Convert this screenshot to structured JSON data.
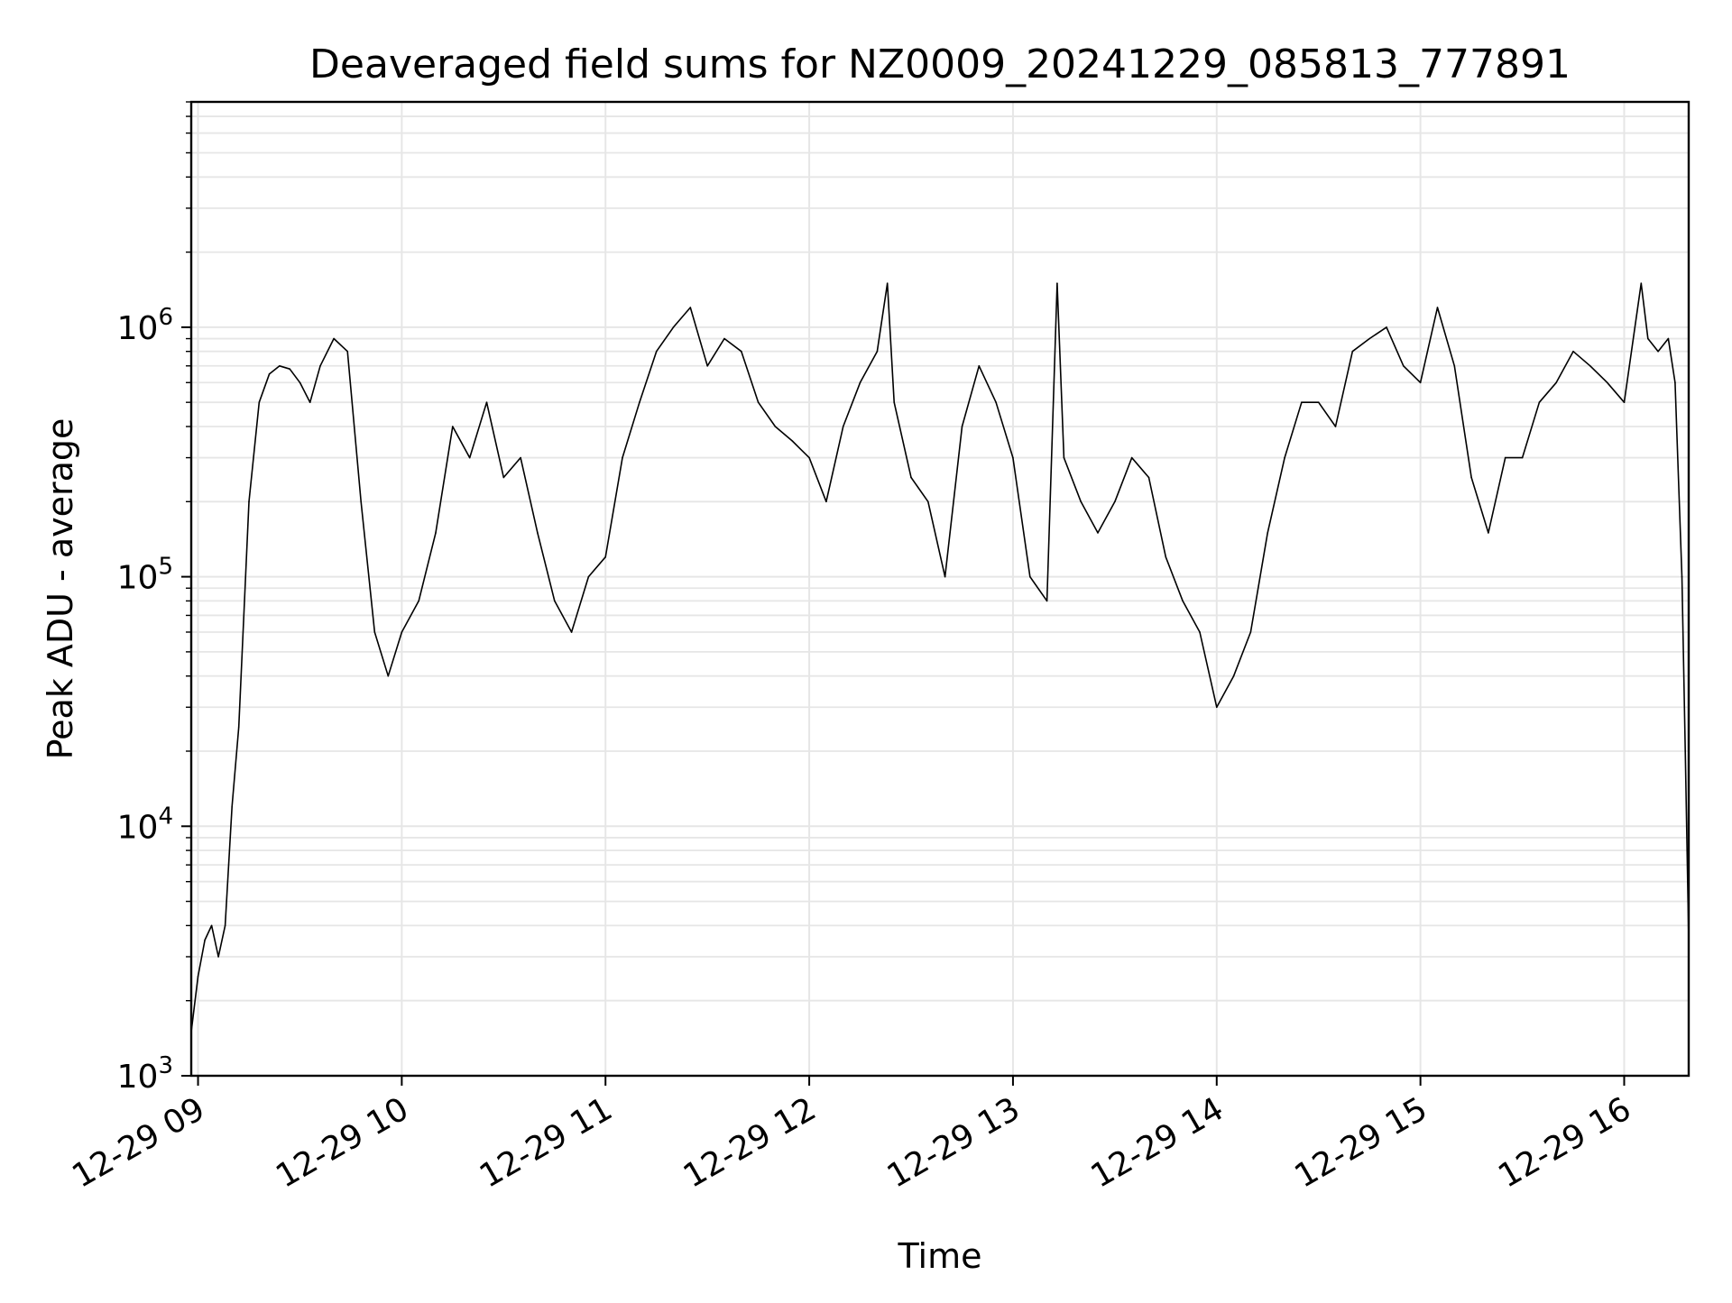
{
  "chart_data": {
    "type": "line",
    "title": "Deaveraged field sums for NZ0009_20241229_085813_777891",
    "xlabel": "Time",
    "ylabel": "Peak ADU - average",
    "yscale": "log",
    "ylim": [
      1000,
      8000000
    ],
    "xlim": [
      "2024-12-29 08:58",
      "2024-12-29 16:19"
    ],
    "x_ticks": [
      "12-29 09",
      "12-29 10",
      "12-29 11",
      "12-29 12",
      "12-29 13",
      "12-29 14",
      "12-29 15",
      "12-29 16"
    ],
    "y_ticks": [
      {
        "base": "10",
        "exp": "3",
        "value": 1000
      },
      {
        "base": "10",
        "exp": "4",
        "value": 10000
      },
      {
        "base": "10",
        "exp": "5",
        "value": 100000
      },
      {
        "base": "10",
        "exp": "6",
        "value": 1000000
      }
    ],
    "grid": true,
    "line_color": "#000000",
    "series": [
      {
        "x": [
          "08:58",
          "09:00",
          "09:02",
          "09:04",
          "09:06",
          "09:08",
          "09:10",
          "09:12",
          "09:15",
          "09:18",
          "09:21",
          "09:24",
          "09:27",
          "09:30",
          "09:33",
          "09:36",
          "09:40",
          "09:44",
          "09:48",
          "09:52",
          "09:56",
          "10:00",
          "10:05",
          "10:10",
          "10:15",
          "10:20",
          "10:25",
          "10:30",
          "10:35",
          "10:40",
          "10:45",
          "10:50",
          "10:55",
          "11:00",
          "11:05",
          "11:10",
          "11:15",
          "11:20",
          "11:25",
          "11:30",
          "11:35",
          "11:40",
          "11:45",
          "11:50",
          "11:55",
          "12:00",
          "12:05",
          "12:10",
          "12:15",
          "12:20",
          "12:23",
          "12:25",
          "12:30",
          "12:35",
          "12:40",
          "12:45",
          "12:50",
          "12:55",
          "13:00",
          "13:05",
          "13:10",
          "13:13",
          "13:15",
          "13:20",
          "13:25",
          "13:30",
          "13:35",
          "13:40",
          "13:45",
          "13:50",
          "13:55",
          "14:00",
          "14:05",
          "14:10",
          "14:15",
          "14:20",
          "14:25",
          "14:30",
          "14:35",
          "14:40",
          "14:45",
          "14:50",
          "14:55",
          "15:00",
          "15:05",
          "15:10",
          "15:15",
          "15:20",
          "15:25",
          "15:30",
          "15:35",
          "15:40",
          "15:45",
          "15:50",
          "15:55",
          "16:00",
          "16:05",
          "16:07",
          "16:10",
          "16:13",
          "16:15",
          "16:17",
          "16:18",
          "16:19"
        ],
        "y": [
          1500,
          2500,
          3500,
          4000,
          3000,
          4000,
          12000,
          25000,
          200000,
          500000,
          650000,
          700000,
          680000,
          600000,
          500000,
          700000,
          900000,
          800000,
          200000,
          60000,
          40000,
          60000,
          80000,
          150000,
          400000,
          300000,
          500000,
          250000,
          300000,
          150000,
          80000,
          60000,
          100000,
          120000,
          300000,
          500000,
          800000,
          1000000,
          1200000,
          700000,
          900000,
          800000,
          500000,
          400000,
          350000,
          300000,
          200000,
          400000,
          600000,
          800000,
          1500000,
          500000,
          250000,
          200000,
          100000,
          400000,
          700000,
          500000,
          300000,
          100000,
          80000,
          1500000,
          300000,
          200000,
          150000,
          200000,
          300000,
          250000,
          120000,
          80000,
          60000,
          30000,
          40000,
          60000,
          150000,
          300000,
          500000,
          500000,
          400000,
          800000,
          900000,
          1000000,
          700000,
          600000,
          1200000,
          700000,
          250000,
          150000,
          300000,
          300000,
          500000,
          600000,
          800000,
          700000,
          600000,
          500000,
          1500000,
          900000,
          800000,
          900000,
          600000,
          100000,
          20000,
          3500
        ]
      }
    ]
  }
}
